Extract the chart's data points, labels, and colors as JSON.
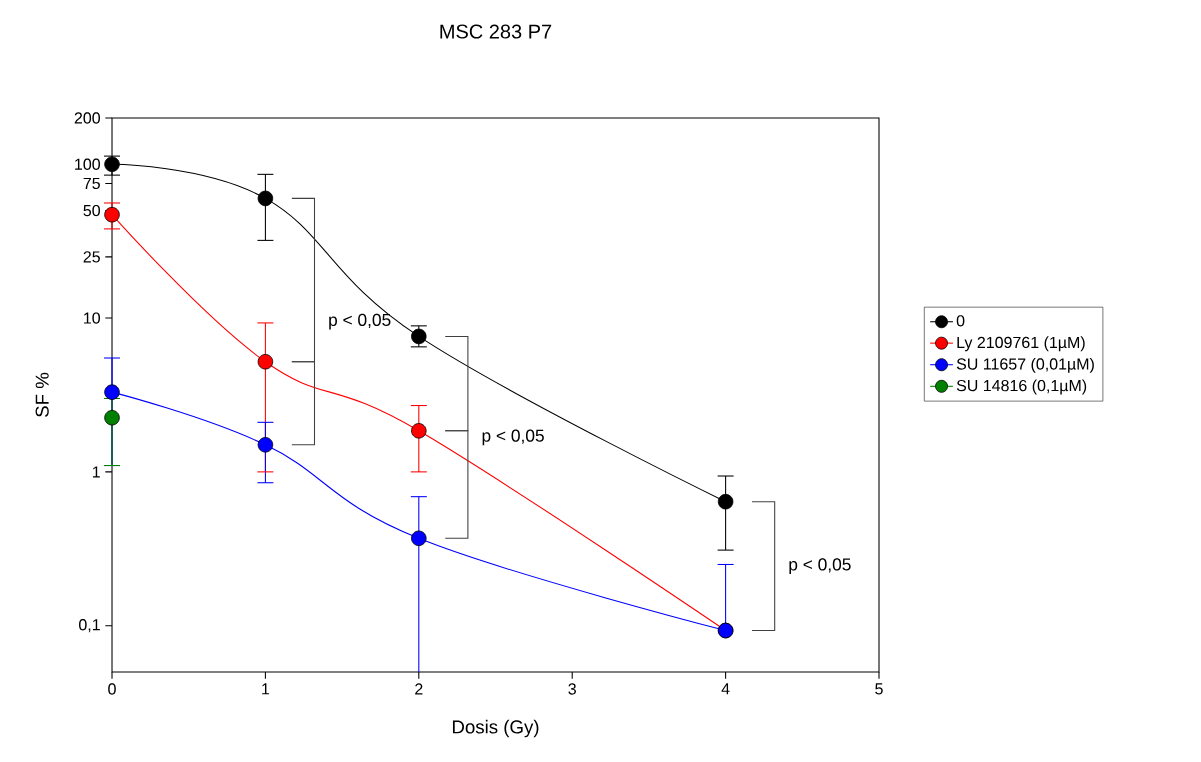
{
  "chart_data": {
    "type": "line",
    "title": "MSC 283 P7",
    "xlabel": "Dosis (Gy)",
    "ylabel": "SF %",
    "x": [
      0,
      1,
      2,
      4
    ],
    "series": [
      {
        "name": "0",
        "color": "#000000",
        "values": [
          100,
          60,
          7.6,
          0.64
        ],
        "errors": [
          [
            85,
            113
          ],
          [
            32,
            86
          ],
          [
            6.5,
            8.9
          ],
          [
            0.31,
            0.94
          ]
        ]
      },
      {
        "name": "Ly 2109761 (1µM)",
        "color": "#ff0000",
        "values": [
          47,
          5.2,
          1.85,
          0.093
        ],
        "errors": [
          [
            38,
            56
          ],
          [
            1.0,
            9.3
          ],
          [
            1.0,
            2.7
          ],
          null
        ]
      },
      {
        "name": "SU 11657 (0,01µM)",
        "color": "#0000ff",
        "values": [
          3.3,
          1.5,
          0.37,
          0.093
        ],
        "errors": [
          [
            1.1,
            5.5
          ],
          [
            0.85,
            2.1
          ],
          [
            0.05,
            0.69
          ],
          [
            0.093,
            0.25
          ]
        ]
      },
      {
        "name": "SU 14816 (0,1µM)",
        "color": "#008000",
        "values": [
          2.25,
          null,
          null,
          null
        ],
        "errors": [
          [
            1.1,
            3.0
          ],
          null,
          null,
          null
        ]
      }
    ],
    "log": "y",
    "xlim": [
      0,
      5
    ],
    "xticks": [
      0,
      1,
      2,
      3,
      4,
      5
    ],
    "ylim": [
      0.05,
      200
    ],
    "yticks": [
      {
        "value": 0.1,
        "label": "0,1"
      },
      1,
      10,
      25,
      50,
      75,
      100,
      200
    ],
    "annotations": [
      "p < 0,05",
      "p < 0,05",
      "p < 0,05"
    ],
    "marker": "circle",
    "line_style": "solid",
    "grid": false,
    "legend": "right"
  }
}
